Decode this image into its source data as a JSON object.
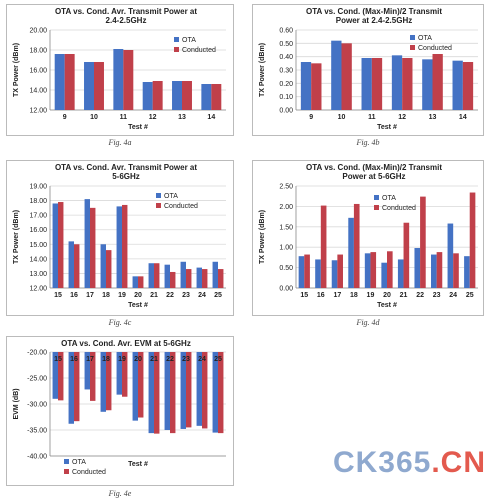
{
  "colors": {
    "ota": "#4472C4",
    "conducted": "#C0404A",
    "frame": "#bbbbbb",
    "grid": "#d9d9d9"
  },
  "watermark": {
    "text_a": "CK365",
    "text_b": ".CN"
  },
  "chart_data": [
    {
      "id": "4a",
      "type": "bar",
      "title_line1": "OTA vs. Cond. Avr. Transmit Power at",
      "title_line2": "2.4-2.5GHz",
      "xlabel": "Test #",
      "ylabel": "TX Power (dBm)",
      "ylim": [
        12,
        20
      ],
      "yticks": [
        12,
        14,
        16,
        18,
        20
      ],
      "ydec": 2,
      "legend": "top-right",
      "categories": [
        "9",
        "10",
        "11",
        "12",
        "13",
        "14"
      ],
      "series": [
        {
          "name": "OTA",
          "values": [
            17.6,
            16.8,
            18.1,
            14.8,
            14.9,
            14.6
          ]
        },
        {
          "name": "Conducted",
          "values": [
            17.6,
            16.8,
            18.0,
            14.9,
            14.9,
            14.6
          ]
        }
      ],
      "fig": "Fig. 4a"
    },
    {
      "id": "4b",
      "type": "bar",
      "title_line1": "OTA vs. Cond. (Max-Min)/2 Transmit",
      "title_line2": "Power at 2.4-2.5GHz",
      "xlabel": "Test #",
      "ylabel": "TX Power (dBm)",
      "ylim": [
        0,
        0.6
      ],
      "yticks": [
        0,
        0.1,
        0.2,
        0.3,
        0.4,
        0.5,
        0.6
      ],
      "ydec": 2,
      "legend": "top-right",
      "categories": [
        "9",
        "10",
        "11",
        "12",
        "13",
        "14"
      ],
      "series": [
        {
          "name": "OTA",
          "values": [
            0.36,
            0.52,
            0.39,
            0.41,
            0.38,
            0.37
          ]
        },
        {
          "name": "Conducted",
          "values": [
            0.35,
            0.5,
            0.39,
            0.39,
            0.42,
            0.36
          ]
        }
      ],
      "fig": "Fig. 4b"
    },
    {
      "id": "4c",
      "type": "bar",
      "title_line1": "OTA vs. Cond. Avr. Transmit Power at",
      "title_line2": "5-6GHz",
      "xlabel": "Test #",
      "ylabel": "TX Power (dBm)",
      "ylim": [
        12,
        19
      ],
      "yticks": [
        12,
        13,
        14,
        15,
        16,
        17,
        18,
        19
      ],
      "ydec": 2,
      "legend": "top-right",
      "categories": [
        "15",
        "16",
        "17",
        "18",
        "19",
        "20",
        "21",
        "22",
        "23",
        "24",
        "25"
      ],
      "series": [
        {
          "name": "OTA",
          "values": [
            17.8,
            15.2,
            18.1,
            15.0,
            17.6,
            12.8,
            13.7,
            13.6,
            13.8,
            13.4,
            13.8
          ]
        },
        {
          "name": "Conducted",
          "values": [
            17.9,
            15.0,
            17.5,
            14.6,
            17.7,
            12.8,
            13.7,
            13.1,
            13.3,
            13.3,
            13.3
          ]
        }
      ],
      "fig": "Fig. 4c"
    },
    {
      "id": "4d",
      "type": "bar",
      "title_line1": "OTA vs. Cond. (Max-Min)/2 Transmit",
      "title_line2": "Power at 5-6GHz",
      "xlabel": "Test #",
      "ylabel": "TX Power (dBm)",
      "ylim": [
        0,
        2.5
      ],
      "yticks": [
        0,
        0.5,
        1,
        1.5,
        2,
        2.5
      ],
      "ydec": 2,
      "legend": "top-right",
      "categories": [
        "15",
        "16",
        "17",
        "18",
        "19",
        "20",
        "21",
        "22",
        "23",
        "24",
        "25"
      ],
      "series": [
        {
          "name": "OTA",
          "values": [
            0.78,
            0.7,
            0.68,
            1.72,
            0.85,
            0.62,
            0.7,
            0.98,
            0.82,
            1.58,
            0.78
          ]
        },
        {
          "name": "Conducted",
          "values": [
            0.82,
            2.02,
            0.82,
            2.06,
            0.88,
            0.9,
            1.6,
            2.24,
            0.88,
            0.85,
            2.34
          ]
        }
      ],
      "fig": "Fig. 4d"
    },
    {
      "id": "4e",
      "type": "bar",
      "title_line1": "OTA vs. Cond. Avr. EVM at 5-6GHz",
      "title_line2": "",
      "xlabel": "Test #",
      "ylabel": "EVM (dB)",
      "ylim": [
        -40,
        -20
      ],
      "yticks": [
        -40,
        -35,
        -30,
        -25,
        -20
      ],
      "ydec": 2,
      "legend": "bottom-left",
      "labels_top": true,
      "categories": [
        "15",
        "16",
        "17",
        "18",
        "19",
        "20",
        "21",
        "22",
        "23",
        "24",
        "25"
      ],
      "series": [
        {
          "name": "OTA",
          "values": [
            -29.0,
            -33.8,
            -27.2,
            -31.5,
            -28.2,
            -33.2,
            -35.6,
            -35.0,
            -34.8,
            -34.2,
            -35.5
          ]
        },
        {
          "name": "Conducted",
          "values": [
            -29.3,
            -33.3,
            -29.4,
            -31.2,
            -28.6,
            -32.6,
            -35.7,
            -35.6,
            -34.5,
            -34.7,
            -35.6
          ]
        }
      ],
      "fig": "Fig. 4e"
    }
  ]
}
